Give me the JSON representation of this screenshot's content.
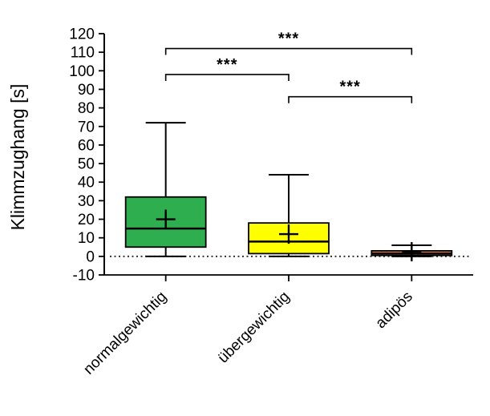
{
  "chart_data": {
    "type": "boxplot",
    "title": "",
    "ylabel": "Klimmzughang [s]",
    "xlabel": "",
    "ylim": [
      -10,
      120
    ],
    "ytick_interval": 10,
    "yticks": [
      -10,
      0,
      10,
      20,
      30,
      40,
      50,
      60,
      70,
      80,
      90,
      100,
      110,
      120
    ],
    "categories": [
      "normalgewichtig",
      "übergewichtig",
      "adipös"
    ],
    "grid": false,
    "legend": "none",
    "zero_reference_line": {
      "value": 0,
      "style": "dotted",
      "color": "#333333"
    },
    "series": [
      {
        "name": "normalgewichtig",
        "box_color": "#2FAE4F",
        "whisker_min": 0,
        "q1": 5,
        "median": 15,
        "q3": 32,
        "whisker_max": 72,
        "mean": 20
      },
      {
        "name": "übergewichtig",
        "box_color": "#FFFF00",
        "whisker_min": 0,
        "q1": 1.5,
        "median": 8,
        "q3": 18,
        "whisker_max": 44,
        "mean": 12
      },
      {
        "name": "adipös",
        "box_color": "#D3794A",
        "whisker_min": 0,
        "q1": 0.5,
        "median": 1.5,
        "q3": 3,
        "whisker_max": 6,
        "mean": 2.5
      }
    ],
    "significance_brackets": [
      {
        "group1": "normalgewichtig",
        "group2": "adipös",
        "label": "***",
        "height": 112
      },
      {
        "group1": "normalgewichtig",
        "group2": "übergewichtig",
        "label": "***",
        "height": 98
      },
      {
        "group1": "übergewichtig",
        "group2": "adipös",
        "label": "***",
        "height": 86
      }
    ],
    "colors": {
      "axis": "#000000",
      "text": "#000000"
    }
  }
}
